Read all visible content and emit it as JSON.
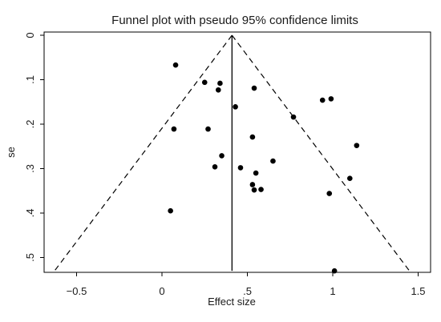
{
  "chart_data": {
    "type": "scatter",
    "title": "Funnel plot with pseudo 95% confidence limits",
    "xlabel": "Effect size",
    "ylabel": "se",
    "xlim": [
      -0.7,
      1.5
    ],
    "ylim": [
      0,
      0.53
    ],
    "y_reversed": true,
    "x_ticks": [
      -0.5,
      0,
      0.5,
      1,
      1.5
    ],
    "x_tick_labels": [
      "−0.5",
      "0",
      ".5",
      "1",
      "1.5"
    ],
    "y_ticks": [
      0,
      0.1,
      0.2,
      0.3,
      0.4,
      0.5
    ],
    "y_tick_labels": [
      "0",
      ".1",
      ".2",
      ".3",
      ".4",
      ".5"
    ],
    "grid": false,
    "pooled_effect": 0.41,
    "confidence_limits": "pseudo 95%",
    "points": [
      {
        "x": 0.08,
        "y": 0.067
      },
      {
        "x": 0.25,
        "y": 0.106
      },
      {
        "x": 0.34,
        "y": 0.108
      },
      {
        "x": 0.33,
        "y": 0.123
      },
      {
        "x": 0.54,
        "y": 0.119
      },
      {
        "x": 0.43,
        "y": 0.161
      },
      {
        "x": 0.94,
        "y": 0.146
      },
      {
        "x": 0.99,
        "y": 0.143
      },
      {
        "x": 0.77,
        "y": 0.184
      },
      {
        "x": 0.07,
        "y": 0.211
      },
      {
        "x": 0.27,
        "y": 0.211
      },
      {
        "x": 0.53,
        "y": 0.229
      },
      {
        "x": 1.14,
        "y": 0.248
      },
      {
        "x": 0.35,
        "y": 0.271
      },
      {
        "x": 0.65,
        "y": 0.283
      },
      {
        "x": 0.31,
        "y": 0.296
      },
      {
        "x": 0.46,
        "y": 0.298
      },
      {
        "x": 0.55,
        "y": 0.31
      },
      {
        "x": 1.1,
        "y": 0.322
      },
      {
        "x": 0.53,
        "y": 0.336
      },
      {
        "x": 0.54,
        "y": 0.348
      },
      {
        "x": 0.58,
        "y": 0.347
      },
      {
        "x": 0.98,
        "y": 0.356
      },
      {
        "x": 0.05,
        "y": 0.395
      },
      {
        "x": 1.01,
        "y": 0.53
      }
    ]
  }
}
